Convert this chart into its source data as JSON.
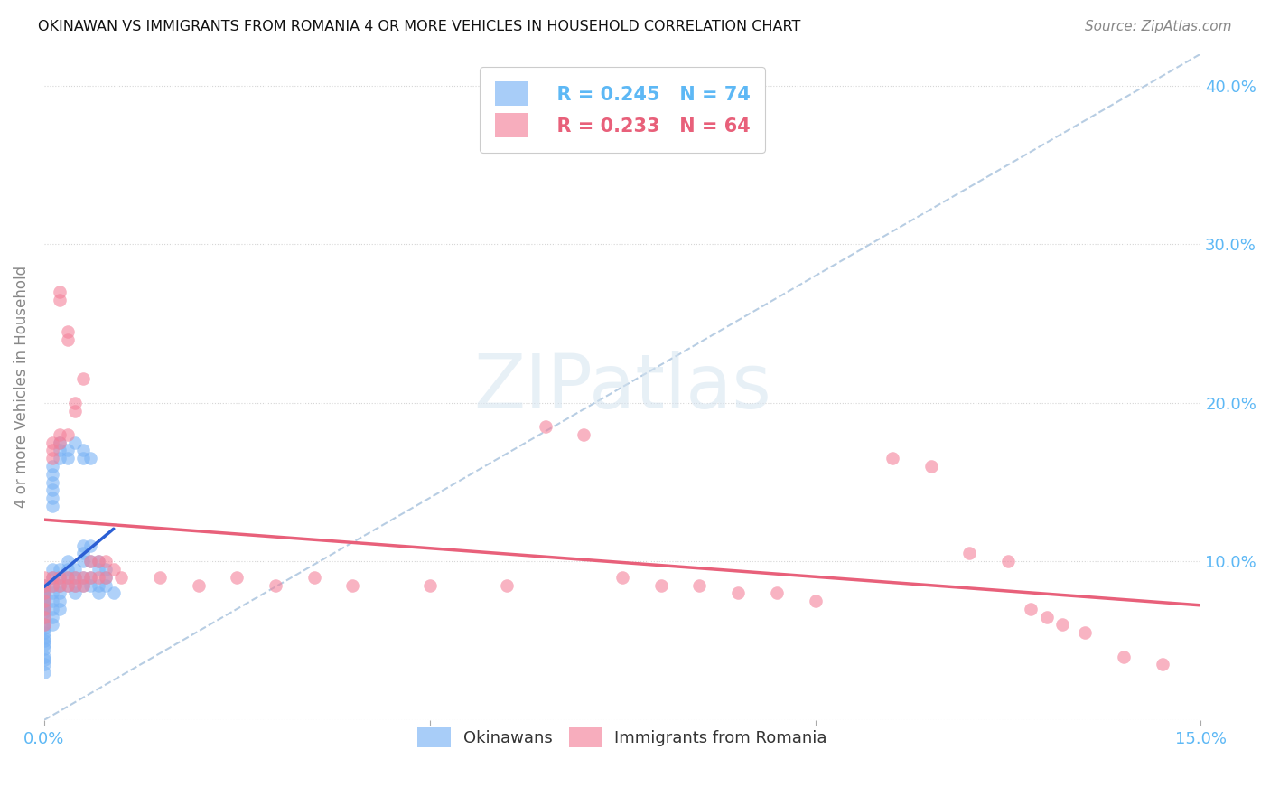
{
  "title": "OKINAWAN VS IMMIGRANTS FROM ROMANIA 4 OR MORE VEHICLES IN HOUSEHOLD CORRELATION CHART",
  "source": "Source: ZipAtlas.com",
  "ylabel": "4 or more Vehicles in Household",
  "xlim": [
    0.0,
    0.15
  ],
  "ylim": [
    0.0,
    0.42
  ],
  "x_ticks": [
    0.0,
    0.05,
    0.1,
    0.15
  ],
  "x_tick_labels": [
    "0.0%",
    "",
    "",
    "15.0%"
  ],
  "y_ticks_right": [
    0.1,
    0.2,
    0.3,
    0.4
  ],
  "y_tick_labels_right": [
    "10.0%",
    "20.0%",
    "30.0%",
    "40.0%"
  ],
  "legend1_r": "R = 0.245",
  "legend1_n": "N = 74",
  "legend2_r": "R = 0.233",
  "legend2_n": "N = 64",
  "okinawan_color": "#7ab3f5",
  "romania_color": "#f4819a",
  "trendline_okinawan_color": "#2b5fd4",
  "trendline_romania_color": "#e8607a",
  "diagonal_color": "#b0c8e0",
  "watermark_color": "#d5e4f0",
  "okinawan_x": [
    0.0,
    0.0,
    0.0,
    0.0,
    0.0,
    0.0,
    0.0,
    0.0,
    0.0,
    0.0,
    0.0,
    0.0,
    0.0,
    0.0,
    0.0,
    0.0,
    0.0,
    0.0,
    0.0,
    0.0,
    0.001,
    0.001,
    0.001,
    0.001,
    0.001,
    0.001,
    0.001,
    0.001,
    0.001,
    0.001,
    0.001,
    0.001,
    0.001,
    0.001,
    0.002,
    0.002,
    0.002,
    0.002,
    0.002,
    0.002,
    0.002,
    0.002,
    0.002,
    0.003,
    0.003,
    0.003,
    0.003,
    0.003,
    0.003,
    0.004,
    0.004,
    0.004,
    0.004,
    0.004,
    0.005,
    0.005,
    0.005,
    0.005,
    0.005,
    0.005,
    0.005,
    0.006,
    0.006,
    0.006,
    0.006,
    0.006,
    0.007,
    0.007,
    0.007,
    0.007,
    0.008,
    0.008,
    0.008,
    0.009
  ],
  "okinawan_y": [
    0.085,
    0.082,
    0.08,
    0.078,
    0.075,
    0.072,
    0.07,
    0.068,
    0.065,
    0.06,
    0.058,
    0.055,
    0.052,
    0.05,
    0.048,
    0.045,
    0.04,
    0.038,
    0.035,
    0.03,
    0.16,
    0.155,
    0.15,
    0.145,
    0.14,
    0.135,
    0.095,
    0.09,
    0.085,
    0.08,
    0.075,
    0.07,
    0.065,
    0.06,
    0.175,
    0.17,
    0.165,
    0.095,
    0.09,
    0.085,
    0.08,
    0.075,
    0.07,
    0.17,
    0.165,
    0.1,
    0.095,
    0.09,
    0.085,
    0.175,
    0.095,
    0.09,
    0.085,
    0.08,
    0.17,
    0.165,
    0.11,
    0.105,
    0.1,
    0.09,
    0.085,
    0.165,
    0.11,
    0.1,
    0.09,
    0.085,
    0.1,
    0.095,
    0.085,
    0.08,
    0.095,
    0.09,
    0.085,
    0.08
  ],
  "romania_x": [
    0.0,
    0.0,
    0.0,
    0.0,
    0.0,
    0.0,
    0.0,
    0.001,
    0.001,
    0.001,
    0.001,
    0.001,
    0.002,
    0.002,
    0.002,
    0.002,
    0.002,
    0.002,
    0.003,
    0.003,
    0.003,
    0.003,
    0.003,
    0.004,
    0.004,
    0.004,
    0.004,
    0.005,
    0.005,
    0.005,
    0.006,
    0.006,
    0.007,
    0.007,
    0.008,
    0.008,
    0.009,
    0.01,
    0.015,
    0.02,
    0.025,
    0.03,
    0.035,
    0.04,
    0.05,
    0.06,
    0.065,
    0.07,
    0.075,
    0.08,
    0.085,
    0.09,
    0.095,
    0.1,
    0.11,
    0.115,
    0.12,
    0.125,
    0.128,
    0.13,
    0.132,
    0.135,
    0.14,
    0.145
  ],
  "romania_y": [
    0.09,
    0.085,
    0.08,
    0.075,
    0.07,
    0.065,
    0.06,
    0.175,
    0.17,
    0.165,
    0.09,
    0.085,
    0.27,
    0.265,
    0.18,
    0.175,
    0.09,
    0.085,
    0.245,
    0.24,
    0.18,
    0.09,
    0.085,
    0.2,
    0.195,
    0.09,
    0.085,
    0.215,
    0.09,
    0.085,
    0.1,
    0.09,
    0.1,
    0.09,
    0.1,
    0.09,
    0.095,
    0.09,
    0.09,
    0.085,
    0.09,
    0.085,
    0.09,
    0.085,
    0.085,
    0.085,
    0.185,
    0.18,
    0.09,
    0.085,
    0.085,
    0.08,
    0.08,
    0.075,
    0.165,
    0.16,
    0.105,
    0.1,
    0.07,
    0.065,
    0.06,
    0.055,
    0.04,
    0.035
  ]
}
